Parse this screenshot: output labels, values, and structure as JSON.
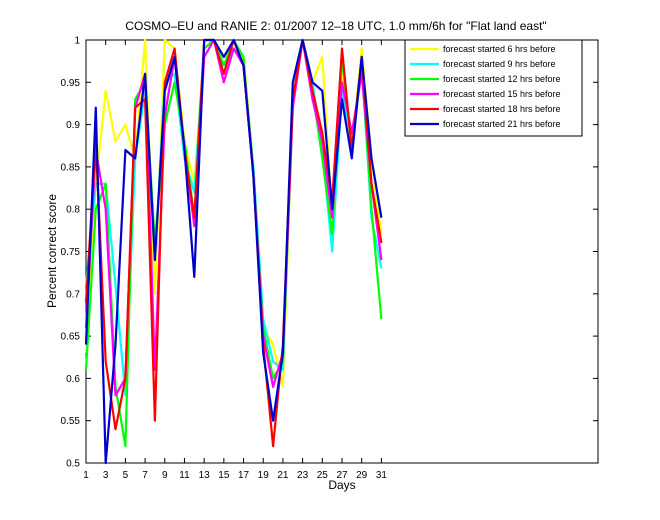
{
  "chart_data": {
    "type": "line",
    "title": "COSMO–EU and RANIE 2: 01/2007 12–18 UTC, 1.0 mm/6h for \"Flat land east\"",
    "xlabel": "Days",
    "ylabel": "Percent correct score",
    "xlim": [
      1,
      53
    ],
    "ylim": [
      0.5,
      1
    ],
    "xticks": [
      "1",
      "3",
      "5",
      "7",
      "9",
      "11",
      "13",
      "15",
      "17",
      "19",
      "21",
      "23",
      "25",
      "27",
      "29",
      "31"
    ],
    "yticks": [
      "0.5",
      "0.55",
      "0.6",
      "0.65",
      "0.7",
      "0.75",
      "0.8",
      "0.85",
      "0.9",
      "0.95",
      "1"
    ],
    "legend_position": "top-right",
    "grid": false,
    "x": [
      1,
      2,
      3,
      4,
      5,
      6,
      7,
      8,
      9,
      10,
      11,
      12,
      13,
      14,
      15,
      16,
      17,
      18,
      19,
      20,
      21,
      22,
      23,
      24,
      25,
      26,
      27,
      28,
      29,
      30,
      31
    ],
    "series": [
      {
        "name": "forecast started 6 hrs before",
        "color": "#ffff00",
        "values": [
          0.63,
          0.83,
          0.94,
          0.88,
          0.9,
          0.86,
          1.0,
          0.7,
          1.0,
          0.99,
          0.88,
          0.83,
          0.99,
          1.0,
          0.98,
          0.99,
          0.98,
          0.85,
          0.66,
          0.64,
          0.59,
          0.92,
          1.0,
          0.95,
          0.98,
          0.79,
          0.96,
          0.87,
          0.99,
          0.86,
          0.77
        ]
      },
      {
        "name": "forecast started 9 hrs before",
        "color": "#00ffff",
        "values": [
          0.71,
          0.83,
          0.83,
          0.71,
          0.58,
          0.86,
          0.94,
          0.74,
          0.95,
          0.96,
          0.86,
          0.82,
          0.99,
          1.0,
          0.97,
          0.99,
          0.97,
          0.85,
          0.67,
          0.62,
          0.61,
          0.93,
          1.0,
          0.95,
          0.87,
          0.75,
          0.94,
          0.88,
          0.97,
          0.79,
          0.73
        ]
      },
      {
        "name": "forecast started 12 hrs before",
        "color": "#00ff00",
        "values": [
          0.61,
          0.8,
          0.83,
          0.59,
          0.52,
          0.93,
          0.95,
          0.76,
          0.9,
          0.95,
          0.88,
          0.79,
          0.99,
          1.0,
          0.97,
          1.0,
          0.98,
          0.84,
          0.66,
          0.6,
          0.62,
          0.93,
          1.0,
          0.94,
          0.86,
          0.77,
          0.98,
          0.87,
          0.97,
          0.8,
          0.67
        ]
      },
      {
        "name": "forecast started 15 hrs before",
        "color": "#ff00ff",
        "values": [
          0.66,
          0.87,
          0.8,
          0.58,
          0.6,
          0.92,
          0.96,
          0.61,
          0.91,
          0.98,
          0.87,
          0.78,
          0.98,
          1.0,
          0.95,
          0.99,
          0.97,
          0.84,
          0.65,
          0.59,
          0.63,
          0.92,
          1.0,
          0.93,
          0.88,
          0.79,
          0.95,
          0.89,
          0.96,
          0.83,
          0.74
        ]
      },
      {
        "name": "forecast started 18 hrs before",
        "color": "#ff0000",
        "values": [
          0.69,
          0.88,
          0.62,
          0.54,
          0.6,
          0.92,
          0.93,
          0.55,
          0.95,
          0.99,
          0.87,
          0.79,
          1.0,
          1.0,
          0.96,
          1.0,
          0.97,
          0.84,
          0.64,
          0.52,
          0.64,
          0.93,
          1.0,
          0.94,
          0.89,
          0.81,
          0.99,
          0.87,
          0.98,
          0.83,
          0.76
        ]
      },
      {
        "name": "forecast started 21 hrs before",
        "color": "#0000cc",
        "values": [
          0.64,
          0.92,
          0.5,
          0.64,
          0.87,
          0.86,
          0.96,
          0.74,
          0.94,
          0.98,
          0.87,
          0.72,
          1.0,
          1.0,
          0.98,
          1.0,
          0.97,
          0.84,
          0.63,
          0.55,
          0.63,
          0.95,
          1.0,
          0.95,
          0.94,
          0.8,
          0.93,
          0.86,
          0.98,
          0.86,
          0.79
        ]
      }
    ]
  }
}
